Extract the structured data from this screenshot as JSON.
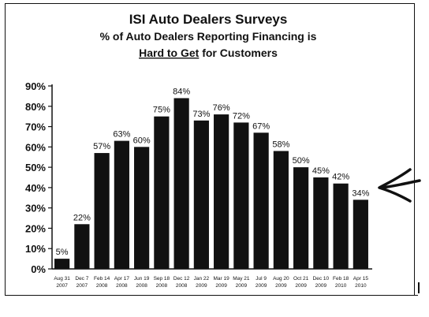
{
  "title_lines": {
    "line1": "ISI Auto Dealers Surveys",
    "line2": "% of Auto Dealers Reporting Financing is",
    "line3_underlined": "Hard to Get",
    "line3_rest": " for Customers"
  },
  "chart_data": {
    "type": "bar",
    "title": "ISI Auto Dealers Surveys — % of Auto Dealers Reporting Financing is Hard to Get for Customers",
    "categories": [
      [
        "Aug 31",
        "2007"
      ],
      [
        "Dec 7",
        "2007"
      ],
      [
        "Feb 14",
        "2008"
      ],
      [
        "Apr 17",
        "2008"
      ],
      [
        "Jun 19",
        "2008"
      ],
      [
        "Sep 18",
        "2008"
      ],
      [
        "Dec 12",
        "2008"
      ],
      [
        "Jan 22",
        "2009"
      ],
      [
        "Mar 19",
        "2009"
      ],
      [
        "May 21",
        "2009"
      ],
      [
        "Jul 9",
        "2009"
      ],
      [
        "Aug 20",
        "2009"
      ],
      [
        "Oct 21",
        "2009"
      ],
      [
        "Dec 10",
        "2009"
      ],
      [
        "Feb 18",
        "2010"
      ],
      [
        "Apr 15",
        "2010"
      ]
    ],
    "values": [
      5,
      22,
      57,
      63,
      60,
      75,
      84,
      73,
      76,
      72,
      67,
      58,
      50,
      45,
      42,
      34
    ],
    "data_labels": [
      "5%",
      "22%",
      "57%",
      "63%",
      "60%",
      "75%",
      "84%",
      "73%",
      "76%",
      "72%",
      "67%",
      "58%",
      "50%",
      "45%",
      "42%",
      "34%"
    ],
    "ylim": [
      0,
      90
    ],
    "yticks": [
      0,
      10,
      20,
      30,
      40,
      50,
      60,
      70,
      80,
      90
    ],
    "ytick_labels": [
      "0%",
      "10%",
      "20%",
      "30%",
      "40%",
      "50%",
      "60%",
      "70%",
      "80%",
      "90%"
    ],
    "bar_color": "#111111",
    "grid": false,
    "annotation": "hand-drawn arrow pointing at last bar"
  }
}
